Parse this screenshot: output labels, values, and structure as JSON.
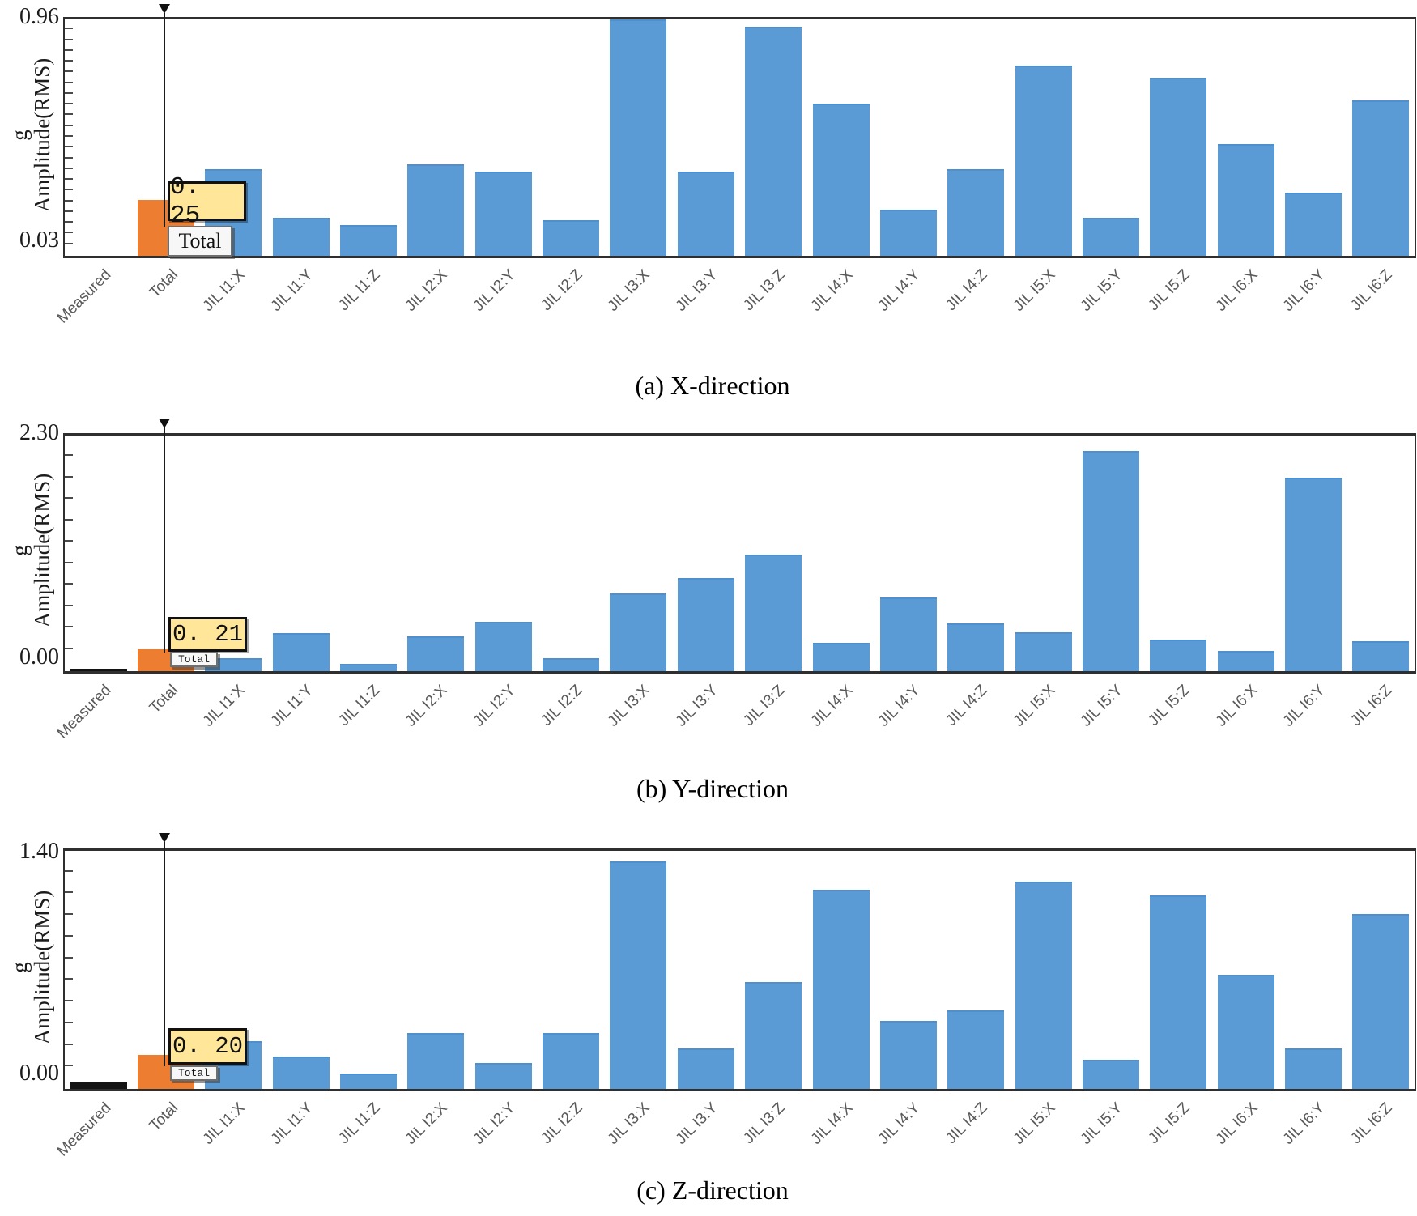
{
  "figure": {
    "categories": [
      "Measured",
      "Total",
      "JIL I1:X",
      "JIL I1:Y",
      "JIL I1:Z",
      "JIL I2:X",
      "JIL I2:Y",
      "JIL I2:Z",
      "JIL I3:X",
      "JIL I3:Y",
      "JIL I3:Z",
      "JIL I4:X",
      "JIL I4:Y",
      "JIL I4:Z",
      "JIL I5:X",
      "JIL I5:Y",
      "JIL I5:Z",
      "JIL I6:X",
      "JIL I6:Y",
      "JIL I6:Z"
    ],
    "colors": {
      "measured_bar": "#141414",
      "total_bar": "#ED7D31",
      "component_bar": "#5B9BD5",
      "component_bar_edge": "#4f8fcc",
      "tooltip_bg": "#FFE699",
      "tooltip_border": "#111111",
      "axis_line": "#2f2f2f",
      "category_label": "#595959"
    }
  },
  "chart_data": [
    {
      "type": "bar",
      "caption": "(a) X-direction",
      "direction": "X",
      "unit": "g",
      "ylabel": "Amplitude(RMS)",
      "ylim": [
        0.03,
        0.96
      ],
      "ytick_top": "0.96",
      "ytick_bottom": "0.03",
      "minor_tick_count": 21,
      "cursor_category": "Total",
      "tooltip_value": "0. 25",
      "tooltip_label": "Total",
      "categories": [
        "Measured",
        "Total",
        "JIL I1:X",
        "JIL I1:Y",
        "JIL I1:Z",
        "JIL I2:X",
        "JIL I2:Y",
        "JIL I2:Z",
        "JIL I3:X",
        "JIL I3:Y",
        "JIL I3:Z",
        "JIL I4:X",
        "JIL I4:Y",
        "JIL I4:Z",
        "JIL I5:X",
        "JIL I5:Y",
        "JIL I5:Z",
        "JIL I6:X",
        "JIL I6:Y",
        "JIL I6:Z"
      ],
      "values": [
        0.03,
        0.25,
        0.37,
        0.18,
        0.15,
        0.39,
        0.36,
        0.17,
        0.96,
        0.36,
        0.93,
        0.63,
        0.21,
        0.37,
        0.78,
        0.18,
        0.73,
        0.47,
        0.28,
        0.64
      ]
    },
    {
      "type": "bar",
      "caption": "(b) Y-direction",
      "direction": "Y",
      "unit": "g",
      "ylabel": "Amplitude(RMS)",
      "ylim": [
        0.0,
        2.3
      ],
      "ytick_top": "2.30",
      "ytick_bottom": "0.00",
      "minor_tick_count": 10,
      "cursor_category": "Total",
      "tooltip_value": "0. 21",
      "tooltip_label": "Total",
      "categories": [
        "Measured",
        "Total",
        "JIL I1:X",
        "JIL I1:Y",
        "JIL I1:Z",
        "JIL I2:X",
        "JIL I2:Y",
        "JIL I2:Z",
        "JIL I3:X",
        "JIL I3:Y",
        "JIL I3:Z",
        "JIL I4:X",
        "JIL I4:Y",
        "JIL I4:Z",
        "JIL I5:X",
        "JIL I5:Y",
        "JIL I5:Z",
        "JIL I6:X",
        "JIL I6:Y",
        "JIL I6:Z"
      ],
      "values": [
        0.02,
        0.21,
        0.13,
        0.37,
        0.07,
        0.34,
        0.48,
        0.13,
        0.76,
        0.91,
        1.14,
        0.28,
        0.72,
        0.47,
        0.38,
        2.15,
        0.31,
        0.2,
        1.89,
        0.29
      ]
    },
    {
      "type": "bar",
      "caption": "(c) Z-direction",
      "direction": "Z",
      "unit": "g",
      "ylabel": "Amplitude(RMS)",
      "ylim": [
        0.0,
        1.4
      ],
      "ytick_top": "1.40",
      "ytick_bottom": "0.00",
      "minor_tick_count": 10,
      "cursor_category": "Total",
      "tooltip_value": "0. 20",
      "tooltip_label": "Total",
      "categories": [
        "Measured",
        "Total",
        "JIL I1:X",
        "JIL I1:Y",
        "JIL I1:Z",
        "JIL I2:X",
        "JIL I2:Y",
        "JIL I2:Z",
        "JIL I3:X",
        "JIL I3:Y",
        "JIL I3:Z",
        "JIL I4:X",
        "JIL I4:Y",
        "JIL I4:Z",
        "JIL I5:X",
        "JIL I5:Y",
        "JIL I5:Z",
        "JIL I6:X",
        "JIL I6:Y",
        "JIL I6:Z"
      ],
      "values": [
        0.04,
        0.2,
        0.28,
        0.19,
        0.09,
        0.33,
        0.15,
        0.33,
        1.34,
        0.24,
        0.63,
        1.17,
        0.4,
        0.46,
        1.22,
        0.17,
        1.14,
        0.67,
        0.24,
        1.03
      ]
    }
  ]
}
